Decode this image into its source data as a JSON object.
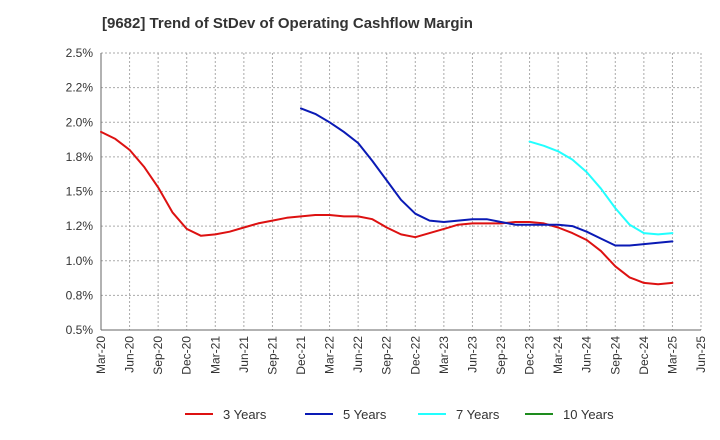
{
  "chart_data": {
    "type": "line",
    "title": "[9682]  Trend of StDev of Operating Cashflow Margin",
    "xlabel": "",
    "ylabel": "",
    "categories": [
      "Mar-20",
      "Jun-20",
      "Sep-20",
      "Dec-20",
      "Mar-21",
      "Jun-21",
      "Sep-21",
      "Dec-21",
      "Mar-22",
      "Jun-22",
      "Sep-22",
      "Dec-22",
      "Mar-23",
      "Jun-23",
      "Sep-23",
      "Dec-23",
      "Mar-24",
      "Jun-24",
      "Sep-24",
      "Dec-24",
      "Mar-25",
      "Jun-25"
    ],
    "ylim": [
      0.5,
      2.5
    ],
    "yticks": [
      0.5,
      0.75,
      1.0,
      1.25,
      1.5,
      1.75,
      2.0,
      2.25,
      2.5
    ],
    "ytick_labels": [
      "0.5%",
      "0.8%",
      "1.0%",
      "1.2%",
      "1.5%",
      "1.8%",
      "2.0%",
      "2.2%",
      "2.5%"
    ],
    "grid": true,
    "legend_position": "bottom",
    "series": [
      {
        "name": "3 Years",
        "color": "#dd1111",
        "x": [
          0,
          0.5,
          1,
          1.5,
          2,
          2.5,
          3,
          3.5,
          4,
          4.5,
          5,
          5.5,
          6,
          6.5,
          7,
          7.5,
          8,
          8.5,
          9,
          9.5,
          10,
          10.5,
          11,
          11.5,
          12,
          12.5,
          13,
          13.5,
          14,
          14.5,
          15,
          15.5,
          16,
          16.5,
          17,
          17.5,
          18,
          18.5,
          19,
          19.5,
          20
        ],
        "values": [
          1.93,
          1.88,
          1.8,
          1.68,
          1.53,
          1.35,
          1.23,
          1.18,
          1.19,
          1.21,
          1.24,
          1.27,
          1.29,
          1.31,
          1.32,
          1.33,
          1.33,
          1.32,
          1.32,
          1.3,
          1.24,
          1.19,
          1.17,
          1.2,
          1.23,
          1.26,
          1.27,
          1.27,
          1.27,
          1.28,
          1.28,
          1.27,
          1.24,
          1.2,
          1.15,
          1.07,
          0.96,
          0.88,
          0.84,
          0.83,
          0.84
        ]
      },
      {
        "name": "5 Years",
        "color": "#0a1ab5",
        "x": [
          7,
          7.5,
          8,
          8.5,
          9,
          9.5,
          10,
          10.5,
          11,
          11.5,
          12,
          12.5,
          13,
          13.5,
          14,
          14.5,
          15,
          15.5,
          16,
          16.5,
          17,
          17.5,
          18,
          18.5,
          19,
          19.5,
          20
        ],
        "values": [
          2.1,
          2.06,
          2.0,
          1.93,
          1.85,
          1.72,
          1.58,
          1.44,
          1.34,
          1.29,
          1.28,
          1.29,
          1.3,
          1.3,
          1.28,
          1.26,
          1.26,
          1.26,
          1.26,
          1.25,
          1.21,
          1.16,
          1.11,
          1.11,
          1.12,
          1.13,
          1.14
        ]
      },
      {
        "name": "7 Years",
        "color": "#22ffff",
        "x": [
          15,
          15.5,
          16,
          16.5,
          17,
          17.5,
          18,
          18.5,
          19,
          19.5,
          20
        ],
        "values": [
          1.86,
          1.83,
          1.79,
          1.73,
          1.64,
          1.52,
          1.38,
          1.26,
          1.2,
          1.19,
          1.2
        ]
      },
      {
        "name": "10 Years",
        "color": "#1e8c1e",
        "x": [],
        "values": []
      }
    ]
  }
}
